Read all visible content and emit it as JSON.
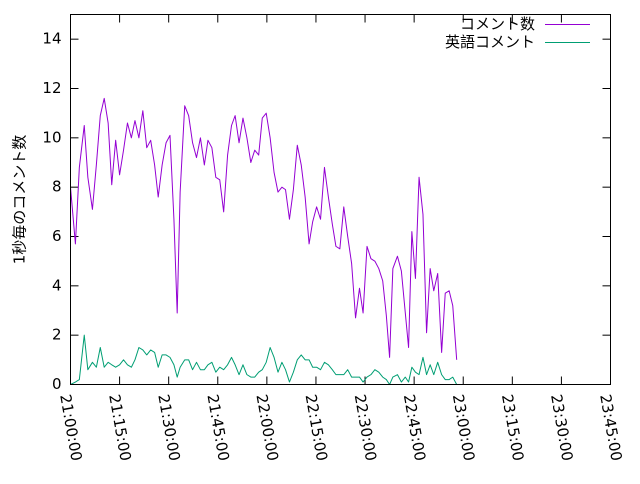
{
  "chart_data": {
    "type": "line",
    "title": "",
    "xlabel": "",
    "ylabel": "1秒毎のコメント数",
    "ylim": [
      0,
      15
    ],
    "xlim_minutes": [
      0,
      165
    ],
    "x_start_time": "21:00:00",
    "x_unit": "minutes since 21:00:00",
    "y_ticks": [
      "0",
      "2",
      "4",
      "6",
      "8",
      "10",
      "12",
      "14"
    ],
    "y_tick_values": [
      0,
      2,
      4,
      6,
      8,
      10,
      12,
      14
    ],
    "x_ticks": [
      "21:00:00",
      "21:15:00",
      "21:30:00",
      "21:45:00",
      "22:00:00",
      "22:15:00",
      "22:30:00",
      "22:45:00",
      "23:00:00",
      "23:15:00",
      "23:30:00",
      "23:45:00"
    ],
    "x_tick_values": [
      0,
      15,
      30,
      45,
      60,
      75,
      90,
      105,
      120,
      135,
      150,
      165
    ],
    "grid": false,
    "legend_position": "top-right",
    "series": [
      {
        "name": "コメント数",
        "color": "#9400d3",
        "points": [
          [
            0,
            8.0
          ],
          [
            1.5,
            5.7
          ],
          [
            2.7,
            8.8
          ],
          [
            4.2,
            10.5
          ],
          [
            5.3,
            8.4
          ],
          [
            6.7,
            7.1
          ],
          [
            7.9,
            8.9
          ],
          [
            9.1,
            10.9
          ],
          [
            10.3,
            11.6
          ],
          [
            11.5,
            10.6
          ],
          [
            12.6,
            8.1
          ],
          [
            13.8,
            9.9
          ],
          [
            15.0,
            8.5
          ],
          [
            16.2,
            9.5
          ],
          [
            17.4,
            10.6
          ],
          [
            18.6,
            10.0
          ],
          [
            19.7,
            10.7
          ],
          [
            20.9,
            10.0
          ],
          [
            22.1,
            11.1
          ],
          [
            23.3,
            9.6
          ],
          [
            24.5,
            9.9
          ],
          [
            25.7,
            8.9
          ],
          [
            26.8,
            7.6
          ],
          [
            28.0,
            8.9
          ],
          [
            29.2,
            9.8
          ],
          [
            30.4,
            10.1
          ],
          [
            31.6,
            6.7
          ],
          [
            32.6,
            2.9
          ],
          [
            33.5,
            7.8
          ],
          [
            34.9,
            11.3
          ],
          [
            36.1,
            10.9
          ],
          [
            37.3,
            9.8
          ],
          [
            38.5,
            9.2
          ],
          [
            39.7,
            10.0
          ],
          [
            40.9,
            8.9
          ],
          [
            42.0,
            9.9
          ],
          [
            43.2,
            9.6
          ],
          [
            44.4,
            8.4
          ],
          [
            45.6,
            8.3
          ],
          [
            46.8,
            7.0
          ],
          [
            48.0,
            9.3
          ],
          [
            49.2,
            10.5
          ],
          [
            50.3,
            10.9
          ],
          [
            51.5,
            9.8
          ],
          [
            52.7,
            10.8
          ],
          [
            53.9,
            10.0
          ],
          [
            55.1,
            9.0
          ],
          [
            56.3,
            9.5
          ],
          [
            57.5,
            9.3
          ],
          [
            58.6,
            10.8
          ],
          [
            59.8,
            11.0
          ],
          [
            61.0,
            10.0
          ],
          [
            62.2,
            8.6
          ],
          [
            63.4,
            7.8
          ],
          [
            64.6,
            8.0
          ],
          [
            65.7,
            7.9
          ],
          [
            66.9,
            6.7
          ],
          [
            68.1,
            7.9
          ],
          [
            69.3,
            9.7
          ],
          [
            70.5,
            8.9
          ],
          [
            71.7,
            7.6
          ],
          [
            72.9,
            5.7
          ],
          [
            74.0,
            6.6
          ],
          [
            75.2,
            7.2
          ],
          [
            76.4,
            6.7
          ],
          [
            77.6,
            8.8
          ],
          [
            78.8,
            7.6
          ],
          [
            80.0,
            6.5
          ],
          [
            81.1,
            5.6
          ],
          [
            82.3,
            5.5
          ],
          [
            83.5,
            7.2
          ],
          [
            84.7,
            6.0
          ],
          [
            85.9,
            4.9
          ],
          [
            87.1,
            2.7
          ],
          [
            88.3,
            3.9
          ],
          [
            89.4,
            2.9
          ],
          [
            90.6,
            5.6
          ],
          [
            91.8,
            5.1
          ],
          [
            93.0,
            5.0
          ],
          [
            94.2,
            4.7
          ],
          [
            95.4,
            4.2
          ],
          [
            96.5,
            2.8
          ],
          [
            97.5,
            1.1
          ],
          [
            98.5,
            4.7
          ],
          [
            99.9,
            5.2
          ],
          [
            101.1,
            4.6
          ],
          [
            102.3,
            2.9
          ],
          [
            103.3,
            1.5
          ],
          [
            104.3,
            6.2
          ],
          [
            105.4,
            4.3
          ],
          [
            106.5,
            8.4
          ],
          [
            107.7,
            6.9
          ],
          [
            108.8,
            2.1
          ],
          [
            109.9,
            4.7
          ],
          [
            111.0,
            3.8
          ],
          [
            112.2,
            4.5
          ],
          [
            113.4,
            1.3
          ],
          [
            114.5,
            3.7
          ],
          [
            115.7,
            3.8
          ],
          [
            116.8,
            3.2
          ],
          [
            118.0,
            1.0
          ]
        ]
      },
      {
        "name": "英語コメント",
        "color": "#009e73",
        "points": [
          [
            0,
            0.0
          ],
          [
            1.5,
            0.1
          ],
          [
            2.7,
            0.2
          ],
          [
            4.2,
            2.0
          ],
          [
            5.3,
            0.6
          ],
          [
            6.7,
            0.9
          ],
          [
            7.9,
            0.7
          ],
          [
            9.1,
            1.5
          ],
          [
            10.3,
            0.7
          ],
          [
            11.5,
            0.9
          ],
          [
            12.6,
            0.8
          ],
          [
            13.8,
            0.7
          ],
          [
            15.0,
            0.8
          ],
          [
            16.2,
            1.0
          ],
          [
            17.4,
            0.8
          ],
          [
            18.6,
            0.7
          ],
          [
            19.7,
            1.0
          ],
          [
            20.9,
            1.5
          ],
          [
            22.1,
            1.4
          ],
          [
            23.3,
            1.2
          ],
          [
            24.5,
            1.4
          ],
          [
            25.7,
            1.3
          ],
          [
            26.8,
            0.7
          ],
          [
            28.0,
            1.2
          ],
          [
            29.2,
            1.2
          ],
          [
            30.4,
            1.1
          ],
          [
            31.6,
            0.8
          ],
          [
            32.6,
            0.3
          ],
          [
            33.5,
            0.7
          ],
          [
            34.9,
            1.0
          ],
          [
            36.1,
            1.0
          ],
          [
            37.3,
            0.6
          ],
          [
            38.5,
            0.9
          ],
          [
            39.7,
            0.6
          ],
          [
            40.9,
            0.6
          ],
          [
            42.0,
            0.8
          ],
          [
            43.2,
            0.9
          ],
          [
            44.4,
            0.5
          ],
          [
            45.6,
            0.7
          ],
          [
            46.8,
            0.6
          ],
          [
            48.0,
            0.8
          ],
          [
            49.2,
            1.1
          ],
          [
            50.3,
            0.8
          ],
          [
            51.5,
            0.4
          ],
          [
            52.7,
            0.8
          ],
          [
            53.9,
            0.4
          ],
          [
            55.1,
            0.3
          ],
          [
            56.3,
            0.3
          ],
          [
            57.5,
            0.5
          ],
          [
            58.6,
            0.6
          ],
          [
            59.8,
            0.9
          ],
          [
            61.0,
            1.5
          ],
          [
            62.2,
            1.1
          ],
          [
            63.4,
            0.5
          ],
          [
            64.6,
            0.9
          ],
          [
            65.7,
            0.6
          ],
          [
            66.9,
            0.1
          ],
          [
            68.1,
            0.5
          ],
          [
            69.3,
            1.0
          ],
          [
            70.5,
            1.2
          ],
          [
            71.7,
            1.0
          ],
          [
            72.9,
            1.0
          ],
          [
            74.0,
            0.7
          ],
          [
            75.2,
            0.7
          ],
          [
            76.4,
            0.6
          ],
          [
            77.6,
            0.9
          ],
          [
            78.8,
            0.8
          ],
          [
            80.0,
            0.6
          ],
          [
            81.1,
            0.4
          ],
          [
            82.3,
            0.4
          ],
          [
            83.5,
            0.4
          ],
          [
            84.7,
            0.6
          ],
          [
            85.9,
            0.3
          ],
          [
            87.1,
            0.3
          ],
          [
            88.3,
            0.3
          ],
          [
            89.4,
            0.1
          ],
          [
            90.6,
            0.3
          ],
          [
            91.8,
            0.4
          ],
          [
            93.0,
            0.6
          ],
          [
            94.2,
            0.5
          ],
          [
            95.4,
            0.3
          ],
          [
            96.5,
            0.2
          ],
          [
            97.5,
            0.0
          ],
          [
            98.5,
            0.3
          ],
          [
            99.9,
            0.4
          ],
          [
            101.1,
            0.1
          ],
          [
            102.3,
            0.3
          ],
          [
            103.3,
            0.1
          ],
          [
            104.3,
            0.7
          ],
          [
            105.4,
            0.5
          ],
          [
            106.5,
            0.4
          ],
          [
            107.7,
            1.1
          ],
          [
            108.8,
            0.4
          ],
          [
            109.9,
            0.8
          ],
          [
            111.0,
            0.4
          ],
          [
            112.2,
            0.9
          ],
          [
            113.4,
            0.4
          ],
          [
            114.5,
            0.2
          ],
          [
            115.7,
            0.2
          ],
          [
            116.8,
            0.3
          ],
          [
            118.0,
            0.0
          ]
        ]
      }
    ]
  }
}
